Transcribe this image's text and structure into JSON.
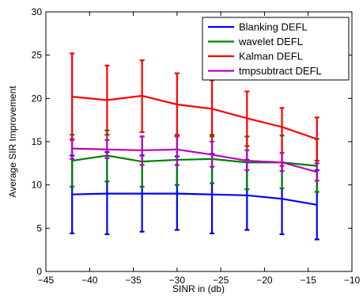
{
  "chart_data": {
    "type": "line",
    "title": "",
    "xlabel": "SINR in (db)",
    "ylabel": "Average SIR Improvement",
    "xlim": [
      -45,
      -10
    ],
    "ylim": [
      0,
      30
    ],
    "xticks": [
      -45,
      -40,
      -35,
      -30,
      -25,
      -20,
      -15,
      -10
    ],
    "yticks": [
      0,
      5,
      10,
      15,
      20,
      25,
      30
    ],
    "xtick_labels": [
      "−45",
      "−40",
      "−35",
      "−30",
      "−25",
      "−20",
      "−15",
      "−10"
    ],
    "ytick_labels": [
      "0",
      "5",
      "10",
      "15",
      "20",
      "25",
      "30"
    ],
    "grid": false,
    "legend_position": "top-right",
    "x": [
      -42,
      -38,
      -34,
      -30,
      -26,
      -22,
      -18,
      -14
    ],
    "series": [
      {
        "name": "Blanking DEFL",
        "color": "#0000ff",
        "values": [
          8.9,
          9.0,
          9.0,
          9.0,
          8.9,
          8.8,
          8.4,
          7.7
        ],
        "err_low": [
          4.4,
          4.3,
          4.6,
          4.8,
          4.4,
          4.8,
          4.3,
          3.7
        ],
        "err_high": [
          13.4,
          13.8,
          13.4,
          13.3,
          13.6,
          12.9,
          12.6,
          11.7
        ]
      },
      {
        "name": "wavelet DEFL",
        "color": "#008000",
        "values": [
          12.8,
          13.4,
          12.7,
          12.9,
          13.0,
          12.6,
          12.6,
          12.2
        ],
        "err_low": [
          9.8,
          10.4,
          9.8,
          10.0,
          10.2,
          9.5,
          9.6,
          9.2
        ],
        "err_high": [
          15.8,
          16.3,
          15.6,
          15.8,
          15.8,
          15.6,
          15.7,
          15.3
        ]
      },
      {
        "name": "Kalman DEFL",
        "color": "#ff0000",
        "values": [
          20.2,
          19.8,
          20.3,
          19.3,
          18.8,
          17.7,
          16.7,
          15.3
        ],
        "err_low": [
          15.2,
          15.8,
          16.1,
          15.7,
          15.6,
          14.5,
          12.2,
          12.8
        ],
        "err_high": [
          25.2,
          23.8,
          24.4,
          22.9,
          22.1,
          20.8,
          18.9,
          17.8
        ]
      },
      {
        "name": "tmpsubtract DEFL",
        "color": "#bf00bf",
        "values": [
          14.2,
          14.1,
          14.0,
          14.1,
          13.5,
          12.8,
          12.6,
          11.5
        ],
        "err_low": [
          13.0,
          13.1,
          12.3,
          12.3,
          12.1,
          11.7,
          11.6,
          10.5
        ],
        "err_high": [
          15.3,
          15.2,
          15.6,
          15.6,
          15.0,
          14.0,
          13.7,
          12.5
        ]
      }
    ]
  }
}
